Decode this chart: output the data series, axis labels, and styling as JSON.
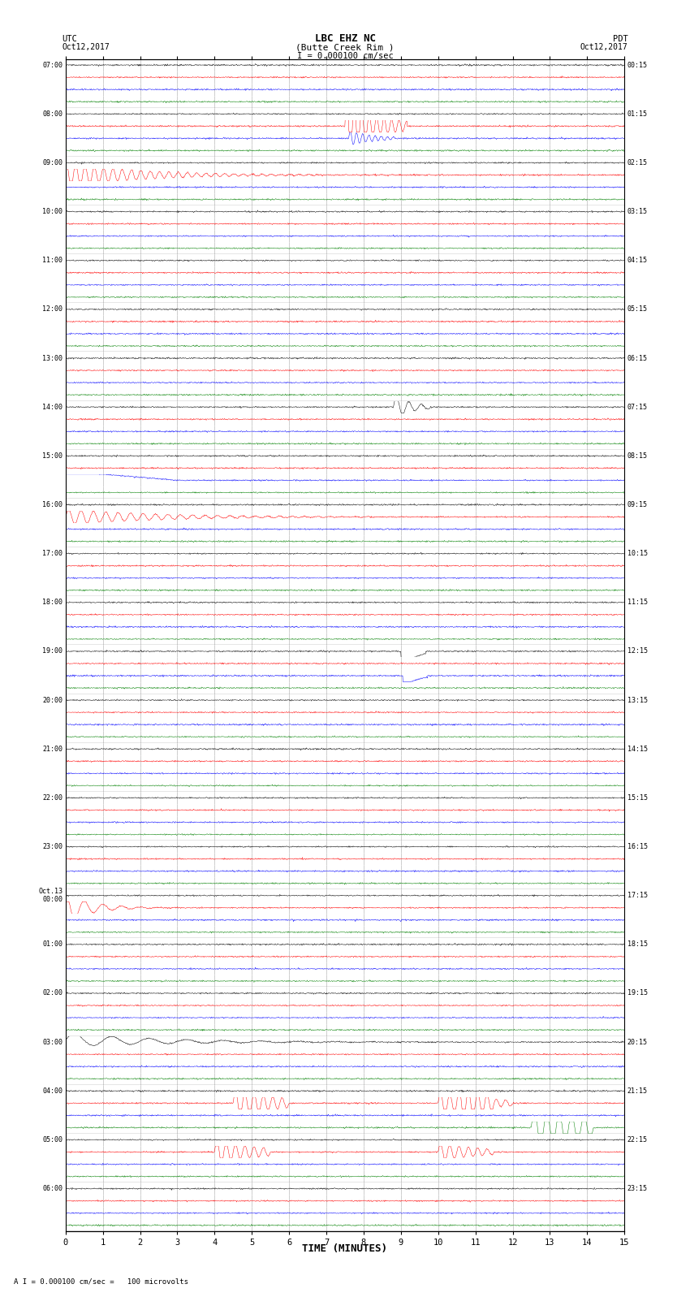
{
  "title_line1": "LBC EHZ NC",
  "title_line2": "(Butte Creek Rim )",
  "scale_text": "I = 0.000100 cm/sec",
  "left_header1": "UTC",
  "left_header2": "Oct12,2017",
  "right_header1": "PDT",
  "right_header2": "Oct12,2017",
  "xlabel": "TIME (MINUTES)",
  "footnote": "A I = 0.000100 cm/sec =   100 microvolts",
  "background_color": "#ffffff",
  "trace_colors": [
    "black",
    "red",
    "blue",
    "green"
  ],
  "num_rows": 24,
  "utc_row_labels": [
    "07:00",
    "08:00",
    "09:00",
    "10:00",
    "11:00",
    "12:00",
    "13:00",
    "14:00",
    "15:00",
    "16:00",
    "17:00",
    "18:00",
    "19:00",
    "20:00",
    "21:00",
    "22:00",
    "23:00",
    "Oct.13\n00:00",
    "01:00",
    "02:00",
    "03:00",
    "04:00",
    "05:00",
    "06:00"
  ],
  "pdt_row_labels": [
    "00:15",
    "01:15",
    "02:15",
    "03:15",
    "04:15",
    "05:15",
    "06:15",
    "07:15",
    "08:15",
    "09:15",
    "10:15",
    "11:15",
    "12:15",
    "13:15",
    "14:15",
    "15:15",
    "16:15",
    "17:15",
    "18:15",
    "19:15",
    "20:15",
    "21:15",
    "22:15",
    "23:15"
  ],
  "xmin": 0,
  "xmax": 15,
  "xticks": [
    0,
    1,
    2,
    3,
    4,
    5,
    6,
    7,
    8,
    9,
    10,
    11,
    12,
    13,
    14,
    15
  ],
  "figsize": [
    8.5,
    16.13
  ],
  "dpi": 100,
  "grid_color": "#aaaaaa",
  "noise_amp": 0.18
}
